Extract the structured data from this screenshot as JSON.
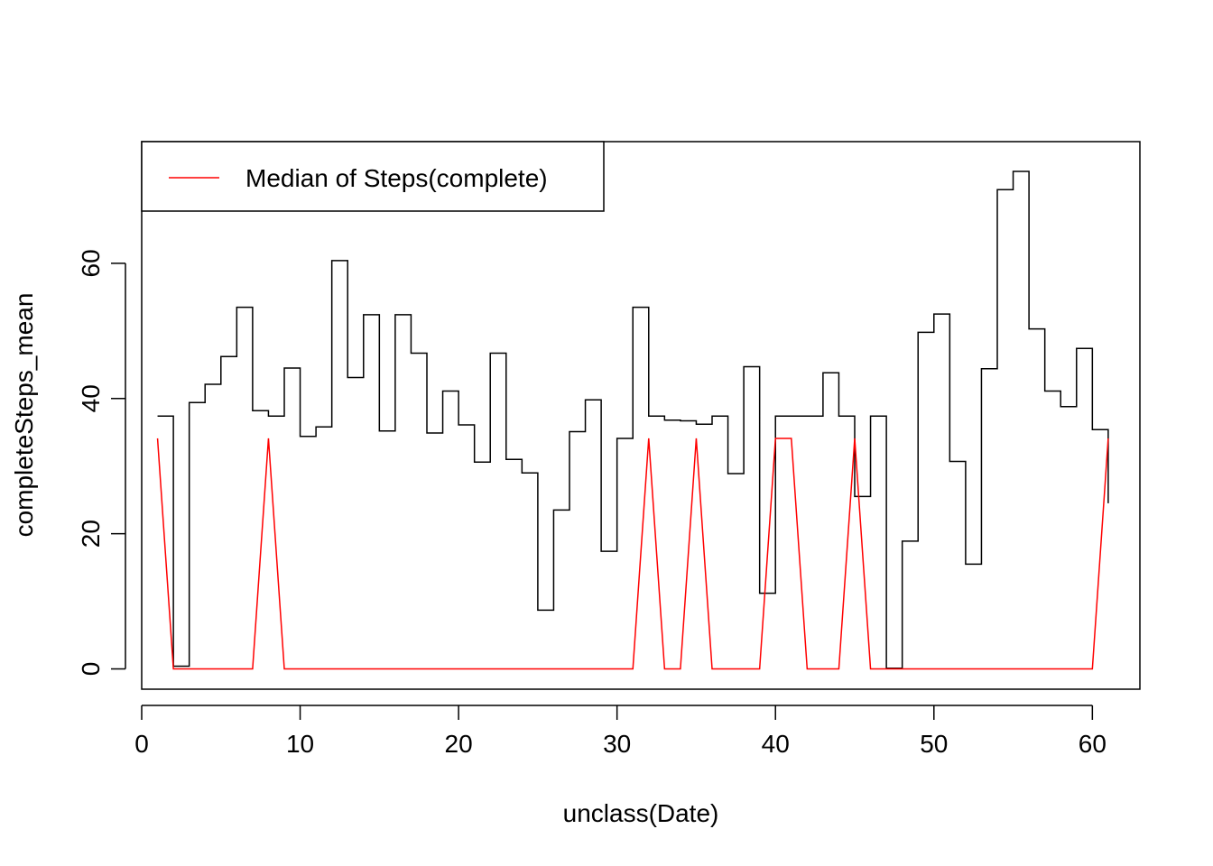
{
  "chart_data": {
    "type": "line",
    "xlabel": "unclass(Date)",
    "ylabel": "completeSteps_mean",
    "xlim": [
      0,
      63
    ],
    "ylim": [
      -3,
      78
    ],
    "x_ticks": [
      "0",
      "10",
      "20",
      "30",
      "40",
      "50",
      "60"
    ],
    "y_ticks": [
      "0",
      "20",
      "40",
      "60"
    ],
    "legend": {
      "position": "top-left",
      "entries": [
        {
          "label": "Median of Steps(complete)",
          "color": "#ff0000"
        }
      ]
    },
    "series": [
      {
        "style": "step",
        "color": "#000000",
        "x": [
          1,
          2,
          3,
          4,
          5,
          6,
          7,
          8,
          9,
          10,
          11,
          12,
          13,
          14,
          15,
          16,
          17,
          18,
          19,
          20,
          21,
          22,
          23,
          24,
          25,
          26,
          27,
          28,
          29,
          30,
          31,
          32,
          33,
          34,
          35,
          36,
          37,
          38,
          39,
          40,
          41,
          42,
          43,
          44,
          45,
          46,
          47,
          48,
          49,
          50,
          51,
          52,
          53,
          54,
          55,
          56,
          57,
          58,
          59,
          60,
          61
        ],
        "y": [
          37.4,
          0.4,
          39.4,
          42.1,
          46.2,
          53.5,
          38.2,
          37.4,
          44.5,
          34.4,
          35.8,
          60.4,
          43.1,
          52.4,
          35.2,
          52.4,
          46.7,
          34.9,
          41.1,
          36.1,
          30.6,
          46.7,
          31.0,
          29.0,
          8.7,
          23.5,
          35.1,
          39.8,
          17.4,
          34.1,
          53.5,
          37.4,
          36.8,
          36.7,
          36.2,
          37.4,
          28.9,
          44.7,
          11.2,
          37.4,
          37.4,
          37.4,
          43.8,
          37.4,
          25.5,
          37.4,
          0.1,
          18.9,
          49.8,
          52.5,
          30.7,
          15.5,
          44.4,
          70.9,
          73.6,
          50.3,
          41.1,
          38.8,
          47.4,
          35.4,
          24.5
        ]
      },
      {
        "name": "Median of Steps(complete)",
        "style": "line",
        "color": "#ff0000",
        "x": [
          1,
          2,
          3,
          4,
          5,
          6,
          7,
          8,
          9,
          10,
          11,
          12,
          13,
          14,
          15,
          16,
          17,
          18,
          19,
          20,
          21,
          22,
          23,
          24,
          25,
          26,
          27,
          28,
          29,
          30,
          31,
          32,
          33,
          34,
          35,
          36,
          37,
          38,
          39,
          40,
          41,
          42,
          43,
          44,
          45,
          46,
          47,
          48,
          49,
          50,
          51,
          52,
          53,
          54,
          55,
          56,
          57,
          58,
          59,
          60,
          61
        ],
        "y": [
          34.1,
          0,
          0,
          0,
          0,
          0,
          0,
          34.1,
          0,
          0,
          0,
          0,
          0,
          0,
          0,
          0,
          0,
          0,
          0,
          0,
          0,
          0,
          0,
          0,
          0,
          0,
          0,
          0,
          0,
          0,
          0,
          34.1,
          0,
          0,
          34.1,
          0,
          0,
          0,
          0,
          34.1,
          34.1,
          0,
          0,
          0,
          34.1,
          0,
          0,
          0,
          0,
          0,
          0,
          0,
          0,
          0,
          0,
          0,
          0,
          0,
          0,
          0,
          34.1
        ]
      }
    ]
  }
}
